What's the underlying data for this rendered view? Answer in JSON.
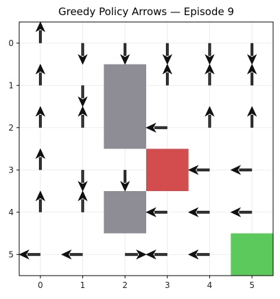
{
  "chart_data": {
    "type": "heatmap",
    "title": "Greedy Policy Arrows — Episode 9",
    "xlabel": "",
    "ylabel": "",
    "xlim": [
      -0.5,
      5.5
    ],
    "ylim": [
      5.5,
      -0.5
    ],
    "x_ticks": [
      0,
      1,
      2,
      3,
      4,
      5
    ],
    "y_ticks": [
      0,
      1,
      2,
      3,
      4,
      5
    ],
    "x_tick_labels": [
      "0",
      "1",
      "2",
      "3",
      "4",
      "5"
    ],
    "y_tick_labels": [
      "0",
      "1",
      "2",
      "3",
      "4",
      "5"
    ],
    "grid": true,
    "cells": [
      {
        "kind": "wall",
        "x": 2,
        "y": 1,
        "color": "#8e8d96"
      },
      {
        "kind": "wall",
        "x": 2,
        "y": 2,
        "color": "#8e8d96"
      },
      {
        "kind": "wall",
        "x": 2,
        "y": 4,
        "color": "#8e8d96"
      },
      {
        "kind": "hazard",
        "x": 3,
        "y": 3,
        "color": "#d34d4e"
      },
      {
        "kind": "goal",
        "x": 5,
        "y": 5,
        "color": "#5cc95c"
      }
    ],
    "arrows": [
      {
        "x": 0,
        "y": 0,
        "dir": "up"
      },
      {
        "x": 1,
        "y": 0,
        "dir": "down"
      },
      {
        "x": 2,
        "y": 0,
        "dir": "down"
      },
      {
        "x": 3,
        "y": 0,
        "dir": "down"
      },
      {
        "x": 4,
        "y": 0,
        "dir": "down"
      },
      {
        "x": 5,
        "y": 0,
        "dir": "down"
      },
      {
        "x": 0,
        "y": 1,
        "dir": "up"
      },
      {
        "x": 1,
        "y": 1,
        "dir": "down"
      },
      {
        "x": 3,
        "y": 1,
        "dir": "up"
      },
      {
        "x": 4,
        "y": 1,
        "dir": "up"
      },
      {
        "x": 5,
        "y": 1,
        "dir": "up"
      },
      {
        "x": 0,
        "y": 2,
        "dir": "up"
      },
      {
        "x": 1,
        "y": 2,
        "dir": "up"
      },
      {
        "x": 3,
        "y": 2,
        "dir": "left"
      },
      {
        "x": 4,
        "y": 2,
        "dir": "up"
      },
      {
        "x": 5,
        "y": 2,
        "dir": "up"
      },
      {
        "x": 0,
        "y": 3,
        "dir": "up"
      },
      {
        "x": 1,
        "y": 3,
        "dir": "down"
      },
      {
        "x": 2,
        "y": 3,
        "dir": "down"
      },
      {
        "x": 4,
        "y": 3,
        "dir": "left"
      },
      {
        "x": 5,
        "y": 3,
        "dir": "left"
      },
      {
        "x": 0,
        "y": 4,
        "dir": "up"
      },
      {
        "x": 1,
        "y": 4,
        "dir": "up"
      },
      {
        "x": 3,
        "y": 4,
        "dir": "left"
      },
      {
        "x": 4,
        "y": 4,
        "dir": "left"
      },
      {
        "x": 5,
        "y": 4,
        "dir": "left"
      },
      {
        "x": 0,
        "y": 5,
        "dir": "left"
      },
      {
        "x": 1,
        "y": 5,
        "dir": "left"
      },
      {
        "x": 2,
        "y": 5,
        "dir": "right"
      },
      {
        "x": 3,
        "y": 5,
        "dir": "left"
      },
      {
        "x": 4,
        "y": 5,
        "dir": "left"
      }
    ]
  }
}
